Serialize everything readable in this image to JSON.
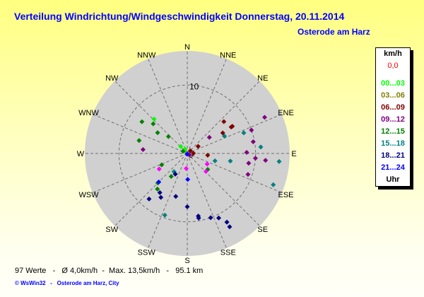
{
  "header": {
    "title": "Verteilung Windrichtung/Windgeschwindigkeit  Donnerstag, 20.11.2014",
    "location": "Osterode am Harz"
  },
  "legend": {
    "unit": "km/h",
    "calm": "0,0",
    "calm_color": "#ff0000",
    "bins": [
      {
        "label": "00...03",
        "color": "#00ff00"
      },
      {
        "label": "03...06",
        "color": "#808000"
      },
      {
        "label": "06...09",
        "color": "#800000"
      },
      {
        "label": "09...12",
        "color": "#800080"
      },
      {
        "label": "12...15",
        "color": "#008000"
      },
      {
        "label": "15...18",
        "color": "#008080"
      },
      {
        "label": "18...21",
        "color": "#000080"
      },
      {
        "label": "21...24",
        "color": "#0000ff"
      }
    ],
    "footer": "Uhr"
  },
  "footer": {
    "stats": "97 Werte   -   Ø 4,0km/h  -  Max. 13,5km/h   -   95.1 km",
    "credit": "© WsWin32   -   Osterode am Harz, City"
  },
  "chart_data": {
    "type": "scatter",
    "coordinate_system": "polar",
    "directions": [
      "N",
      "NNE",
      "NE",
      "ENE",
      "E",
      "ESE",
      "SE",
      "SSE",
      "S",
      "SSW",
      "SW",
      "WSW",
      "W",
      "WNW",
      "NW",
      "NNW"
    ],
    "ring_labels": [
      {
        "value": 10,
        "label": "10"
      }
    ],
    "center_label": "0",
    "r_max": 15,
    "grid": true,
    "units": {
      "direction": "degrees",
      "speed": "km/h"
    },
    "series": [
      {
        "name": "00...03",
        "color": "#00ff00",
        "points": [
          [
            316,
            7.0
          ],
          [
            317,
            1.4
          ],
          [
            332,
            0.7
          ],
          [
            315,
            0.6
          ]
        ]
      },
      {
        "name": "06...09",
        "color": "#800000",
        "points": [
          [
            49,
            7.1
          ],
          [
            59,
            7.5
          ],
          [
            59,
            7.7
          ],
          [
            60,
            6.0
          ],
          [
            57,
            1.9
          ],
          [
            50,
            0.6
          ],
          [
            88,
            0.9
          ],
          [
            95,
            3.0
          ]
        ]
      },
      {
        "name": "09...12",
        "color": "#800080",
        "points": [
          [
            65,
            12.5
          ],
          [
            70,
            10.0
          ],
          [
            54,
            4.0
          ],
          [
            80,
            9.8
          ],
          [
            89,
            8.7
          ],
          [
            94,
            10.0
          ],
          [
            95,
            11.5
          ],
          [
            99,
            9.1
          ],
          [
            109,
            9.4
          ],
          [
            275,
            6.5
          ],
          [
            125,
            0.4
          ]
        ]
      },
      {
        "name": "12...15",
        "color": "#008000",
        "points": [
          [
            305,
            8.1
          ],
          [
            311,
            6.6
          ],
          [
            305,
            5.3
          ],
          [
            312,
            3.7
          ],
          [
            285,
            7.3
          ],
          [
            298,
            0.7
          ],
          [
            246,
            4.1
          ],
          [
            215,
            4.1
          ],
          [
            225,
            6.1
          ],
          [
            220,
            6.8
          ],
          [
            128,
            3.8
          ]
        ]
      },
      {
        "name": "15...18",
        "color": "#008080",
        "points": [
          [
            70,
            8.8
          ],
          [
            65,
            6.0
          ],
          [
            85,
            10.8
          ],
          [
            105,
            4.2
          ],
          [
            100,
            6.4
          ],
          [
            95,
            13.5
          ],
          [
            110,
            13.4
          ],
          [
            216,
            3.3
          ],
          [
            200,
            9.6
          ]
        ]
      },
      {
        "name": "18...21",
        "color": "#000080",
        "points": [
          [
            210,
            3.5
          ],
          [
            215,
            7.0
          ],
          [
            211,
            7.5
          ],
          [
            220,
            8.7
          ],
          [
            195,
            6.5
          ],
          [
            180,
            7.8
          ],
          [
            170,
            9.3
          ],
          [
            170,
            9.6
          ],
          [
            160,
            10.0
          ],
          [
            154,
            10.5
          ],
          [
            150,
            11.6
          ],
          [
            150,
            12.4
          ]
        ]
      },
      {
        "name": "21...24",
        "color": "#0000ff",
        "points": [
          [
            179,
            3.8
          ],
          [
            225,
            5.9
          ],
          [
            180,
            0.1
          ]
        ]
      },
      {
        "color": "#ff00ff",
        "points": [
          [
            118,
            3.3
          ],
          [
            134,
            3.8
          ],
          [
            184,
            2.2
          ],
          [
            241,
            4.7
          ]
        ]
      }
    ]
  }
}
